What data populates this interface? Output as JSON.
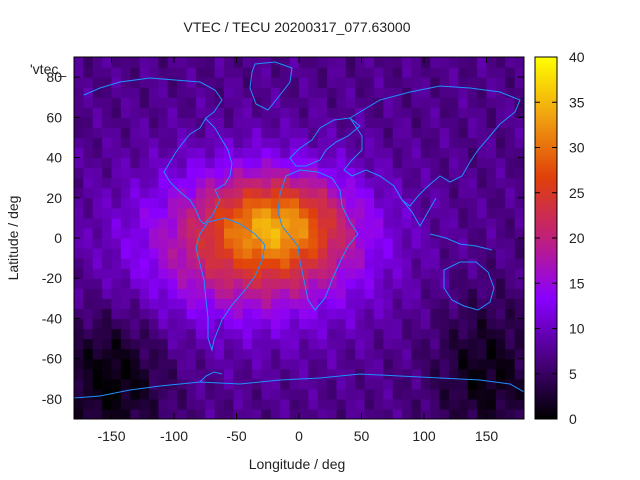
{
  "chart_data": {
    "type": "heatmap",
    "title": "VTEC / TECU 20200317_077.63000",
    "xlabel": "Longitude / deg",
    "ylabel": "Latitude / deg",
    "xlim": [
      -180,
      180
    ],
    "ylim": [
      -90,
      90
    ],
    "x_ticks": [
      -150,
      -100,
      -50,
      0,
      50,
      100,
      150
    ],
    "y_ticks": [
      -80,
      -60,
      -40,
      -20,
      0,
      20,
      40,
      60,
      80
    ],
    "colorbar": {
      "min": 0,
      "max": 40,
      "ticks": [
        0,
        5,
        10,
        15,
        20,
        25,
        30,
        35,
        40
      ],
      "colors": [
        "#000000",
        "#4b0082",
        "#8a00ff",
        "#c0207a",
        "#e0400a",
        "#f0a010",
        "#ffff00"
      ]
    },
    "legend": "'vtec_",
    "features": {
      "background_tecu": 7,
      "min_tecu": 0,
      "max_tecu": 36,
      "peak_region": {
        "lon_range": [
          -60,
          30
        ],
        "lat_range": [
          -10,
          25
        ],
        "tecu": [
          28,
          36
        ]
      },
      "enhanced_region": {
        "lon_range": [
          -120,
          50
        ],
        "lat_range": [
          -40,
          35
        ],
        "tecu": [
          18,
          28
        ]
      },
      "low_regions": [
        {
          "lon_range": [
            -180,
            -120
          ],
          "lat_range": [
            -90,
            -50
          ],
          "tecu": [
            0,
            3
          ]
        },
        {
          "lon_range": [
            120,
            180
          ],
          "lat_range": [
            -90,
            -45
          ],
          "tecu": [
            1,
            4
          ]
        }
      ],
      "overlay": "coastlines"
    }
  }
}
